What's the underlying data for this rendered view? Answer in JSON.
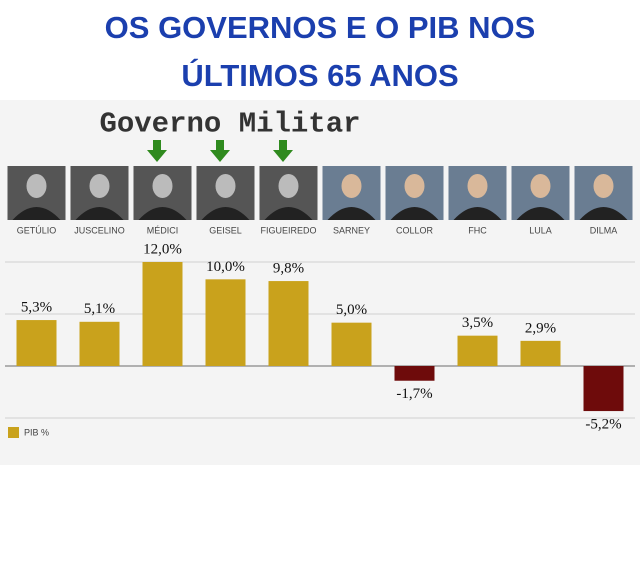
{
  "chart_data": {
    "type": "bar",
    "title": [
      "OS GOVERNOS E O PIB NOS",
      "ÚLTIMOS 65 ANOS"
    ],
    "annotation": "Governo Militar",
    "categories": [
      "GETÚLIO",
      "JUSCELINO",
      "MÉDICI",
      "GEISEL",
      "FIGUEIREDO",
      "SARNEY",
      "COLLOR",
      "FHC",
      "LULA",
      "DILMA"
    ],
    "series": [
      {
        "name": "PIB %",
        "color": "#c9a21c",
        "negative_color": "#6e0b0b",
        "values": [
          5.3,
          5.1,
          12.0,
          10.0,
          9.8,
          5.0,
          -1.7,
          3.5,
          2.9,
          -5.2
        ],
        "value_labels": [
          "5,3%",
          "5,1%",
          "12,0%",
          "10,0%",
          "9,8%",
          "5,0%",
          "-1,7%",
          "3,5%",
          "2,9%",
          "-5,2%"
        ]
      }
    ],
    "ylim": [
      -6,
      12
    ],
    "legend": "bottom-left"
  }
}
